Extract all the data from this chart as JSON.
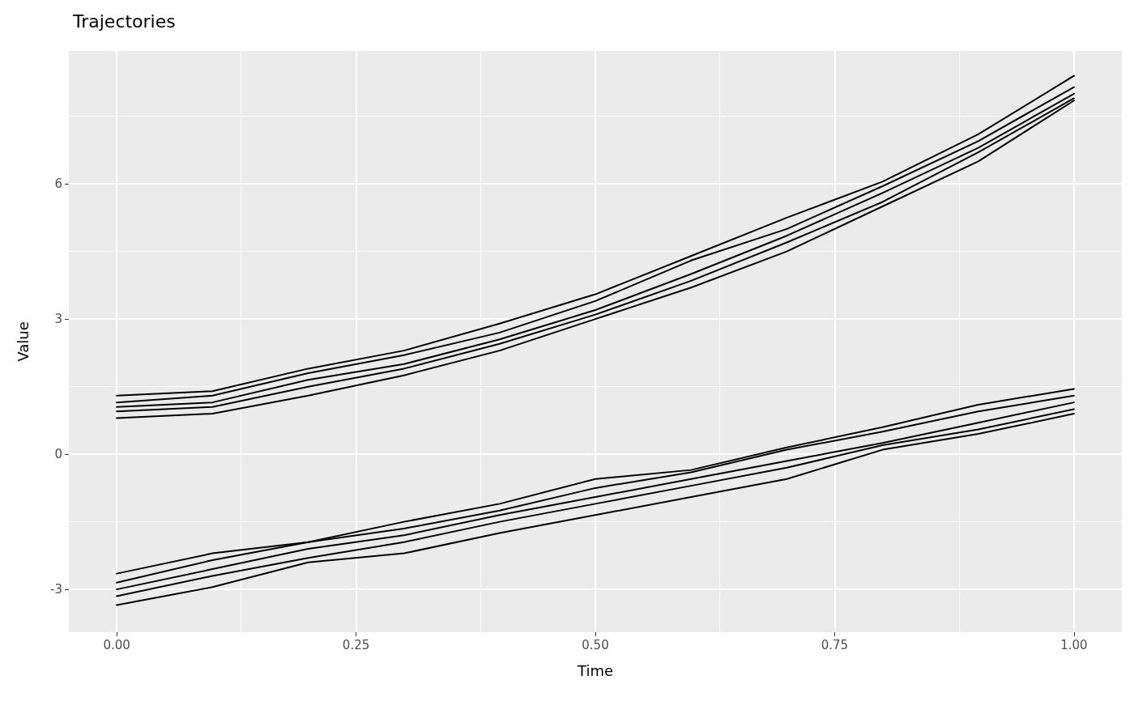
{
  "chart_data": {
    "type": "line",
    "title": "Trajectories",
    "xlabel": "Time",
    "ylabel": "Value",
    "x": [
      0,
      0.1,
      0.2,
      0.3,
      0.4,
      0.5,
      0.6,
      0.7,
      0.8,
      0.9,
      1.0
    ],
    "xlim": [
      -0.05,
      1.05
    ],
    "xticks": [
      {
        "value": 0,
        "label": "0.00"
      },
      {
        "value": 0.25,
        "label": "0.25"
      },
      {
        "value": 0.5,
        "label": "0.50"
      },
      {
        "value": 0.75,
        "label": "0.75"
      },
      {
        "value": 1,
        "label": "1.00"
      }
    ],
    "ylim": [
      -3.95,
      8.95
    ],
    "yticks": [
      -3,
      0,
      3,
      6
    ],
    "grid": true,
    "marker": "none",
    "line_style": "solid",
    "series": [
      {
        "color": "#000000",
        "values": [
          1.3,
          1.4,
          1.9,
          2.3,
          2.9,
          3.55,
          4.4,
          5.25,
          6.05,
          7.1,
          8.4
        ]
      },
      {
        "color": "#000000",
        "values": [
          1.05,
          1.15,
          1.65,
          2.0,
          2.55,
          3.2,
          4.0,
          4.85,
          5.8,
          6.8,
          8.0
        ]
      },
      {
        "color": "#000000",
        "values": [
          1.15,
          1.3,
          1.8,
          2.2,
          2.7,
          3.4,
          4.3,
          5.0,
          5.95,
          6.95,
          8.15
        ]
      },
      {
        "color": "#000000",
        "values": [
          0.95,
          1.05,
          1.5,
          1.9,
          2.45,
          3.1,
          3.85,
          4.7,
          5.6,
          6.7,
          7.9
        ]
      },
      {
        "color": "#000000",
        "values": [
          0.8,
          0.9,
          1.3,
          1.75,
          2.3,
          3.0,
          3.7,
          4.5,
          5.5,
          6.5,
          7.85
        ]
      },
      {
        "color": "#000000",
        "values": [
          -2.65,
          -2.2,
          -1.95,
          -1.5,
          -1.1,
          -0.55,
          -0.35,
          0.15,
          0.6,
          1.1,
          1.45
        ]
      },
      {
        "color": "#000000",
        "values": [
          -2.85,
          -2.35,
          -1.95,
          -1.65,
          -1.25,
          -0.75,
          -0.4,
          0.1,
          0.5,
          0.95,
          1.3
        ]
      },
      {
        "color": "#000000",
        "values": [
          -3.0,
          -2.55,
          -2.1,
          -1.8,
          -1.35,
          -0.95,
          -0.55,
          -0.15,
          0.25,
          0.7,
          1.15
        ]
      },
      {
        "color": "#000000",
        "values": [
          -3.15,
          -2.7,
          -2.3,
          -1.95,
          -1.5,
          -1.1,
          -0.7,
          -0.3,
          0.2,
          0.55,
          1.0
        ]
      },
      {
        "color": "#000000",
        "values": [
          -3.35,
          -2.95,
          -2.4,
          -2.2,
          -1.75,
          -1.35,
          -0.95,
          -0.55,
          0.1,
          0.45,
          0.9
        ]
      }
    ]
  }
}
